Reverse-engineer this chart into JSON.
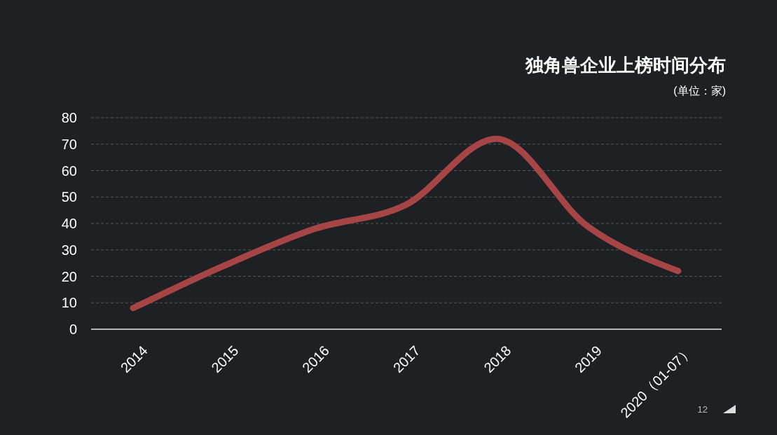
{
  "chart_data": {
    "type": "line",
    "title": "独角兽企业上榜时间分布",
    "subtitle": "(单位：家)",
    "categories": [
      "2014",
      "2015",
      "2016",
      "2017",
      "2018",
      "2019",
      "2020（01-07）"
    ],
    "series": [
      {
        "color": "#a54545",
        "values": [
          8,
          24,
          38,
          47,
          72,
          39,
          22
        ]
      }
    ],
    "ylim": [
      0,
      80
    ],
    "yticks": [
      0,
      10,
      20,
      30,
      40,
      50,
      60,
      70,
      80
    ],
    "grid": "y",
    "annotations": [
      "12"
    ]
  }
}
